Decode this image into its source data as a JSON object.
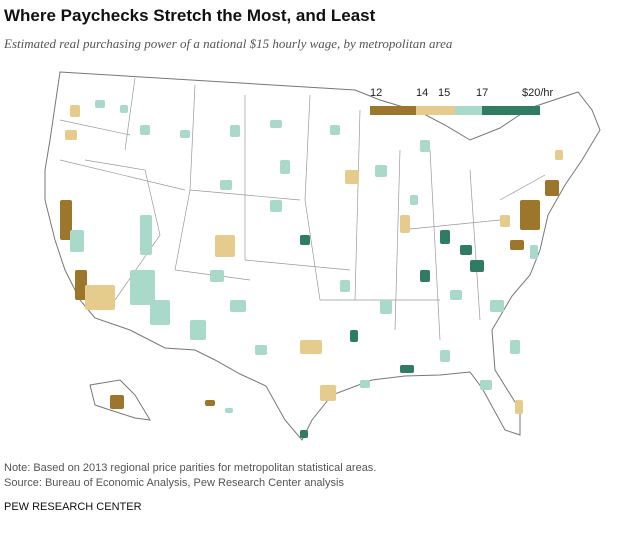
{
  "header": {
    "title": "Where Paychecks Stretch the Most, and Least",
    "subtitle": "Estimated real purchasing power of a national $15 hourly wage, by metropolitan area"
  },
  "legend": {
    "labels": [
      "12",
      "14",
      "15",
      "17",
      "$20/hr"
    ],
    "colors": [
      "#9c772b",
      "#e6cc8c",
      "#a9d9c9",
      "#2f7c62"
    ]
  },
  "notes": [
    "Note: Based on 2013 regional price parities for metropolitan statistical areas.",
    "Source: Bureau of Economic Analysis, Pew Research Center analysis"
  ],
  "footer": "PEW RESEARCH CENTER"
}
